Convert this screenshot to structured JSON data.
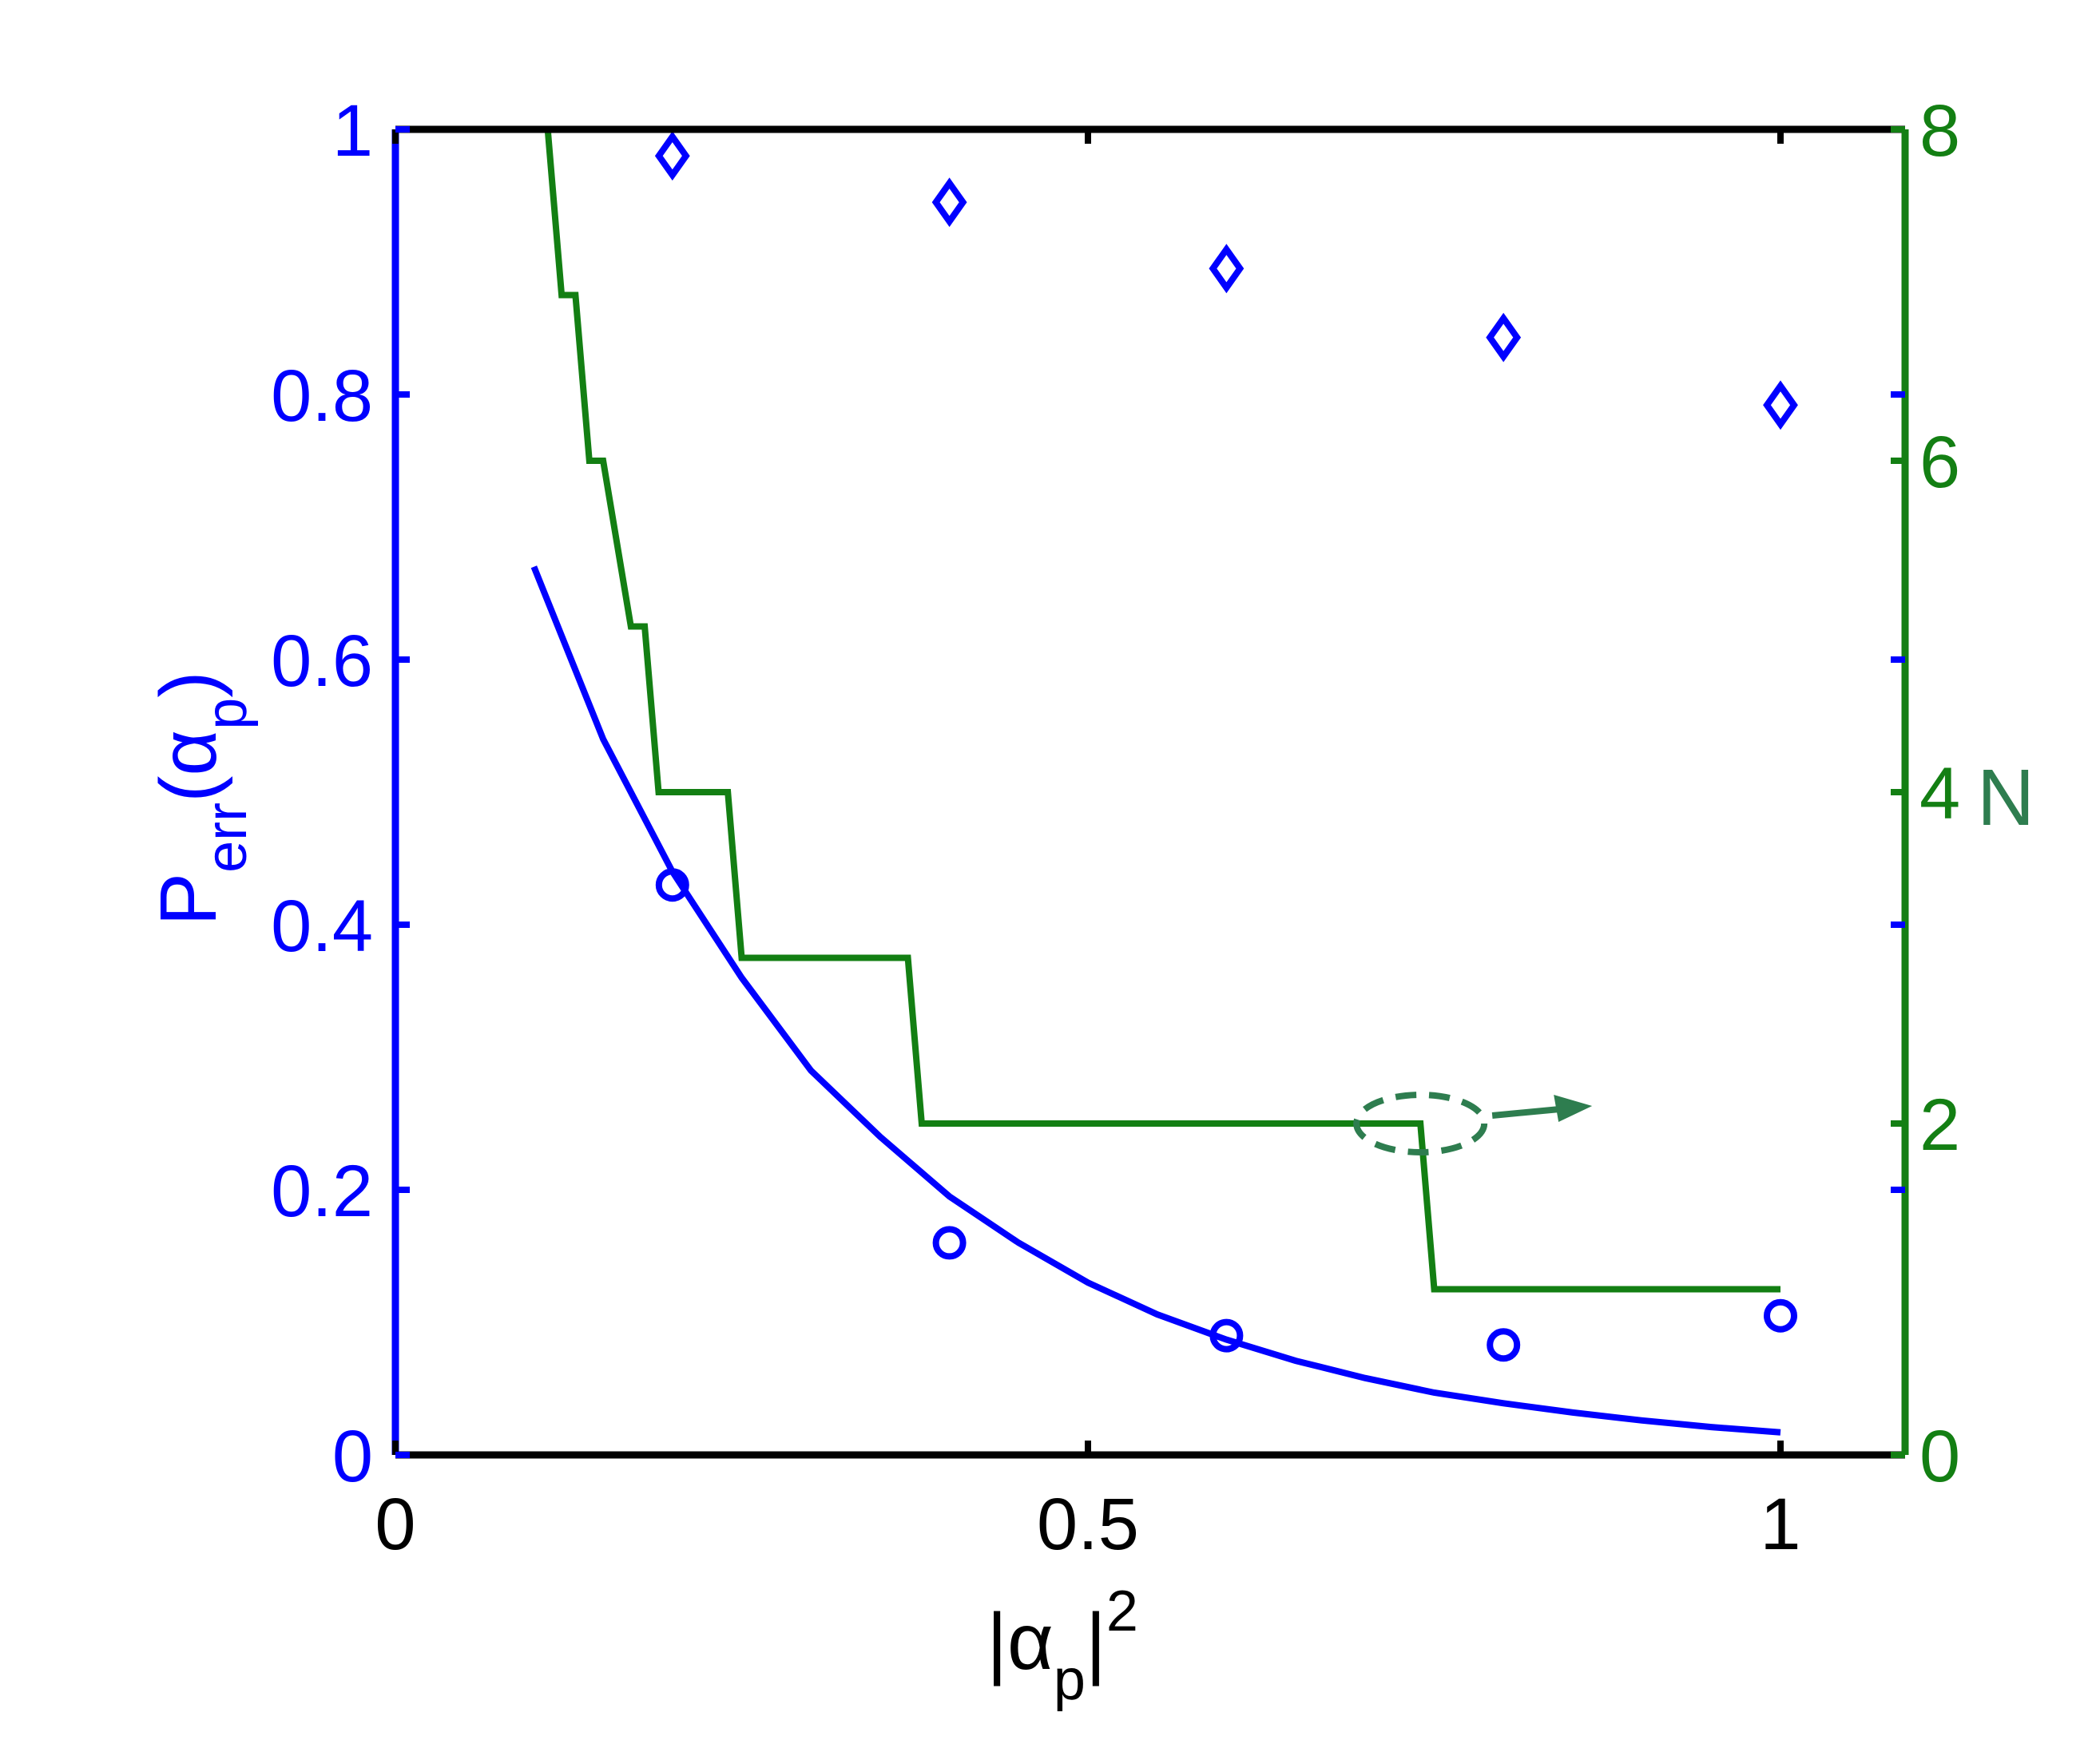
{
  "colors": {
    "left_axis": "#0000ff",
    "right_axis": "#137f13",
    "frame": "#000000",
    "annotation": "#2e7d4f"
  },
  "chart_data": {
    "type": "line",
    "x_range": [
      0,
      1.09
    ],
    "y_left_range": [
      0,
      1
    ],
    "y_right_range": [
      0,
      8
    ],
    "grid": false,
    "x_ticks": [
      "0",
      "0.5",
      "1"
    ],
    "x_tick_values": [
      0,
      0.5,
      1
    ],
    "y_left_ticks": [
      "0",
      "0.2",
      "0.4",
      "0.6",
      "0.8",
      "1"
    ],
    "y_left_tick_values": [
      0,
      0.2,
      0.4,
      0.6,
      0.8,
      1
    ],
    "y_right_ticks": [
      "0",
      "2",
      "4",
      "6",
      "8"
    ],
    "y_right_tick_values": [
      0,
      2,
      4,
      6,
      8
    ],
    "xlabel": {
      "pre": "|α",
      "sub": "p",
      "post": "|",
      "sup": "2"
    },
    "ylabel_left": {
      "pre": "P",
      "sub1": "err",
      "mid": "(α",
      "sub2": "p",
      "post": ")"
    },
    "ylabel_right": "N",
    "series": [
      {
        "kind": "curve",
        "axis": "left",
        "color": "#0000ff",
        "x": [
          0.1,
          0.15,
          0.2,
          0.25,
          0.3,
          0.35,
          0.4,
          0.45,
          0.5,
          0.55,
          0.6,
          0.65,
          0.7,
          0.75,
          0.8,
          0.85,
          0.9,
          0.95,
          1.0
        ],
        "y": [
          0.67,
          0.54,
          0.44,
          0.36,
          0.29,
          0.24,
          0.195,
          0.16,
          0.13,
          0.106,
          0.087,
          0.071,
          0.058,
          0.047,
          0.039,
          0.032,
          0.026,
          0.021,
          0.017
        ]
      },
      {
        "kind": "markers",
        "marker": "circle",
        "axis": "left",
        "color": "#0000ff",
        "x": [
          0.2,
          0.4,
          0.6,
          0.8,
          1.0
        ],
        "y": [
          0.43,
          0.16,
          0.09,
          0.083,
          0.105
        ]
      },
      {
        "kind": "markers",
        "marker": "diamond",
        "axis": "left",
        "color": "#0000ff",
        "x": [
          0.2,
          0.4,
          0.6,
          0.8,
          1.0
        ],
        "y": [
          0.98,
          0.945,
          0.895,
          0.843,
          0.792
        ]
      },
      {
        "kind": "step",
        "axis": "right",
        "color": "#137f13",
        "x": [
          0.1,
          0.11,
          0.12,
          0.13,
          0.14,
          0.15,
          0.17,
          0.18,
          0.19,
          0.24,
          0.25,
          0.37,
          0.38,
          0.74,
          0.75,
          1.0
        ],
        "y": [
          8,
          8,
          7,
          7,
          6,
          6,
          5,
          5,
          4,
          4,
          3,
          3,
          2,
          2,
          1,
          1
        ]
      }
    ],
    "annotation": {
      "kind": "ellipse-arrow",
      "points_to": "right axis",
      "near_x": 0.74,
      "near_y_right": 2
    }
  }
}
